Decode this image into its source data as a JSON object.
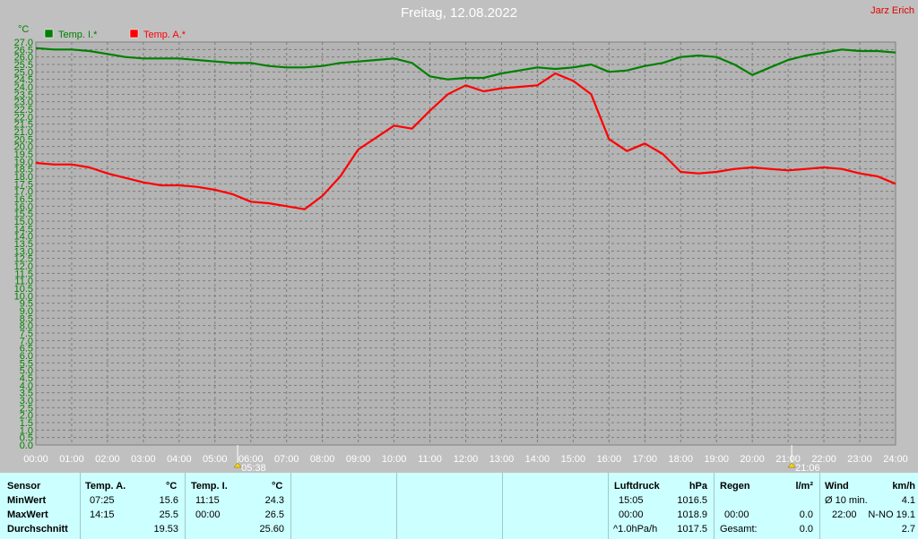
{
  "title": "Freitag, 12.08.2022",
  "author": "Jarz Erich",
  "chart_data": {
    "type": "line",
    "ylabel": "°C",
    "ylim": [
      0,
      27
    ],
    "ystep": 0.5,
    "xlim": [
      0,
      24
    ],
    "x_ticks": [
      "00:00",
      "01:00",
      "02:00",
      "03:00",
      "04:00",
      "05:00",
      "06:00",
      "07:00",
      "08:00",
      "09:00",
      "10:00",
      "11:00",
      "12:00",
      "13:00",
      "14:00",
      "15:00",
      "16:00",
      "17:00",
      "18:00",
      "19:00",
      "20:00",
      "21:00",
      "22:00",
      "23:00",
      "24:00"
    ],
    "grid": true,
    "legend_position": "top-left",
    "sunrise": "05:38",
    "sunset": "21:06",
    "series": [
      {
        "name": "Temp. I.*",
        "color": "#008000",
        "x": [
          0,
          0.5,
          1,
          1.5,
          2,
          2.5,
          3,
          3.5,
          4,
          4.5,
          5,
          5.5,
          6,
          6.5,
          7,
          7.5,
          8,
          8.5,
          9,
          9.5,
          10,
          10.5,
          11,
          11.5,
          12,
          12.5,
          13,
          13.5,
          14,
          14.5,
          15,
          15.5,
          16,
          16.5,
          17,
          17.5,
          18,
          18.5,
          19,
          19.5,
          20,
          20.5,
          21,
          21.5,
          22,
          22.5,
          23,
          23.5,
          24
        ],
        "y": [
          26.6,
          26.5,
          26.5,
          26.4,
          26.2,
          26.0,
          25.9,
          25.9,
          25.9,
          25.8,
          25.7,
          25.6,
          25.6,
          25.4,
          25.3,
          25.3,
          25.4,
          25.6,
          25.7,
          25.8,
          25.9,
          25.6,
          24.7,
          24.5,
          24.6,
          24.6,
          24.9,
          25.1,
          25.3,
          25.2,
          25.3,
          25.5,
          25.0,
          25.1,
          25.4,
          25.6,
          26.0,
          26.1,
          26.0,
          25.5,
          24.8,
          25.3,
          25.8,
          26.1,
          26.3,
          26.5,
          26.4,
          26.4,
          26.3
        ]
      },
      {
        "name": "Temp. A.*",
        "color": "#ff0000",
        "x": [
          0,
          0.5,
          1,
          1.5,
          2,
          2.5,
          3,
          3.5,
          4,
          4.5,
          5,
          5.5,
          6,
          6.5,
          7,
          7.5,
          8,
          8.5,
          9,
          9.5,
          10,
          10.5,
          11,
          11.5,
          12,
          12.5,
          13,
          13.5,
          14,
          14.5,
          15,
          15.5,
          16,
          16.5,
          17,
          17.5,
          18,
          18.5,
          19,
          19.5,
          20,
          20.5,
          21,
          21.5,
          22,
          22.5,
          23,
          23.5,
          24
        ],
        "y": [
          18.9,
          18.8,
          18.8,
          18.6,
          18.2,
          17.9,
          17.6,
          17.4,
          17.4,
          17.3,
          17.1,
          16.8,
          16.3,
          16.2,
          16.0,
          15.8,
          16.7,
          18.0,
          19.8,
          20.6,
          21.4,
          21.2,
          22.4,
          23.5,
          24.1,
          23.7,
          23.9,
          24.0,
          24.1,
          24.9,
          24.4,
          23.5,
          20.5,
          19.7,
          20.2,
          19.5,
          18.3,
          18.2,
          18.3,
          18.5,
          18.6,
          18.5,
          18.4,
          18.5,
          18.6,
          18.5,
          18.2,
          18.0,
          17.5
        ]
      }
    ]
  },
  "stats": {
    "sensor": {
      "header": "Sensor",
      "min": "MinWert",
      "max": "MaxWert",
      "avg": "Durchschnitt"
    },
    "temp_a": {
      "header": "Temp. A.",
      "unit": "°C",
      "min_time": "07:25",
      "min_val": "15.6",
      "max_time": "14:15",
      "max_val": "25.5",
      "avg": "19.53"
    },
    "temp_i": {
      "header": "Temp. I.",
      "unit": "°C",
      "min_time": "11:15",
      "min_val": "24.3",
      "max_time": "00:00",
      "max_val": "26.5",
      "avg": "25.60"
    },
    "pressure": {
      "header": "Luftdruck",
      "unit": "hPa",
      "min_time": "15:05",
      "min_val": "1016.5",
      "max_time": "00:00",
      "max_val": "1018.9",
      "trend_label": "^1.0hPa/h",
      "trend_val": "1017.5"
    },
    "rain": {
      "header": "Regen",
      "unit": "l/m²",
      "time": "00:00",
      "val": "0.0",
      "total_label": "Gesamt:",
      "total_val": "0.0"
    },
    "wind": {
      "header": "Wind",
      "unit": "km/h",
      "avg_label": "Ø 10 min.",
      "avg_val": "4.1",
      "max_time": "22:00",
      "max_val": "N-NO 19.1",
      "avg_day": "2.7"
    }
  }
}
